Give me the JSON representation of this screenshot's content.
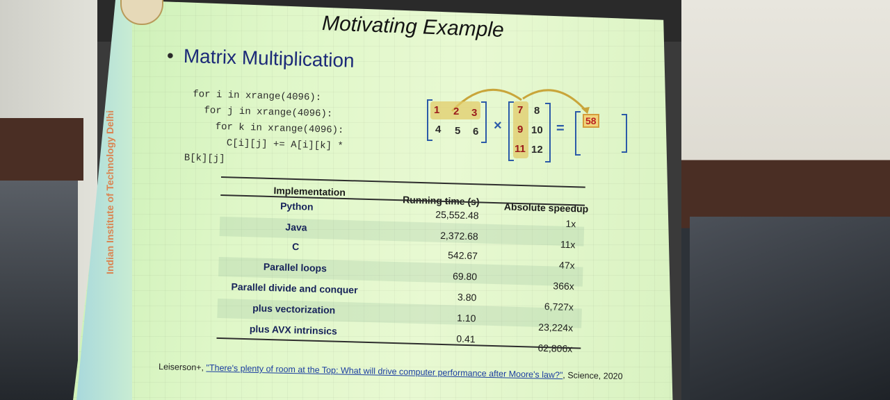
{
  "slide": {
    "title": "Motivating Example",
    "bullet": "Matrix Multiplication",
    "side_text": "Indian Institute of Technology Delhi",
    "code_lines": [
      "for i in xrange(4096):",
      "  for j in xrange(4096):",
      "    for k in xrange(4096):",
      "      C[i][j] += A[i][k] *",
      "B[k][j]"
    ],
    "matrix_a": [
      "1",
      "2",
      "3",
      "4",
      "5",
      "6"
    ],
    "matrix_b": [
      "7",
      "8",
      "9",
      "10",
      "11",
      "12"
    ],
    "times_symbol": "×",
    "equals_symbol": "=",
    "result_value": "58",
    "table": {
      "headers": [
        "Implementation",
        "Running time (s)",
        "Absolute speedup"
      ],
      "rows": [
        {
          "impl": "Python",
          "time": "25,552.48",
          "speedup": "1x"
        },
        {
          "impl": "Java",
          "time": "2,372.68",
          "speedup": "11x"
        },
        {
          "impl": "C",
          "time": "542.67",
          "speedup": "47x"
        },
        {
          "impl": "Parallel loops",
          "time": "69.80",
          "speedup": "366x"
        },
        {
          "impl": "Parallel divide and conquer",
          "time": "3.80",
          "speedup": "6,727x"
        },
        {
          "impl": "plus vectorization",
          "time": "1.10",
          "speedup": "23,224x"
        },
        {
          "impl": "plus AVX intrinsics",
          "time": "0.41",
          "speedup": "62,806x"
        }
      ]
    },
    "reference": {
      "prefix": "Leiserson+, ",
      "link": "\"There's plenty of room at the Top: What will drive computer performance after Moore's law?\"",
      "suffix": ", Science, 2020"
    }
  }
}
